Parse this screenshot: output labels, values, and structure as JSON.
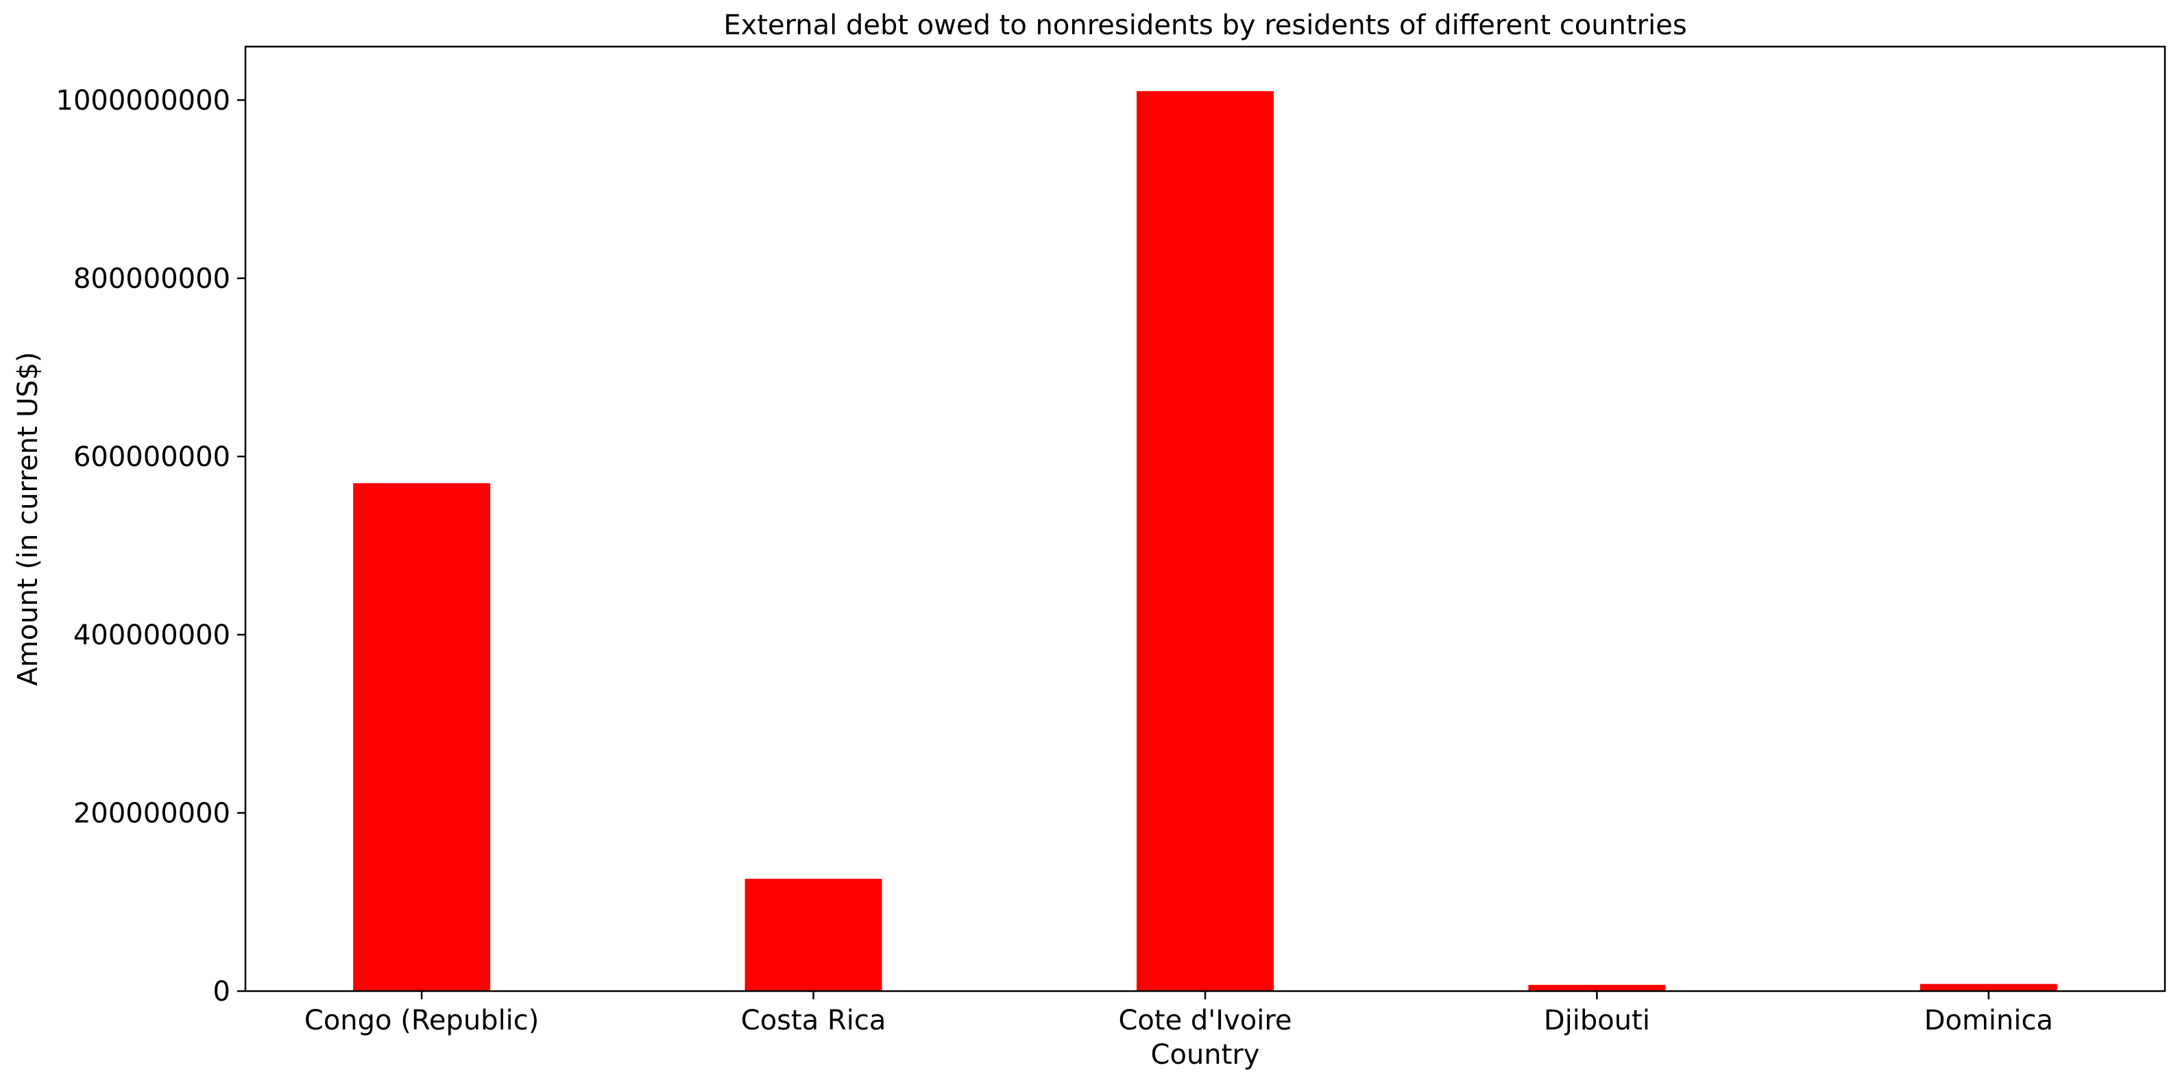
{
  "chart_data": {
    "type": "bar",
    "title": "External debt owed to nonresidents by residents of different countries",
    "xlabel": "Country",
    "ylabel": "Amount (in current US$)",
    "categories": [
      "Congo (Republic)",
      "Costa Rica",
      "Cote d'Ivoire",
      "Djibouti",
      "Dominica"
    ],
    "values": [
      570000000,
      126000000,
      1010000000,
      7000000,
      8000000
    ],
    "ylim": [
      0,
      1060000000
    ],
    "yticks": [
      0,
      200000000,
      400000000,
      600000000,
      800000000,
      1000000000
    ],
    "ytick_labels": [
      "0",
      "200000000",
      "400000000",
      "600000000",
      "800000000",
      "1000000000"
    ],
    "bar_color": "#ff0000",
    "grid": false,
    "legend": "none"
  }
}
